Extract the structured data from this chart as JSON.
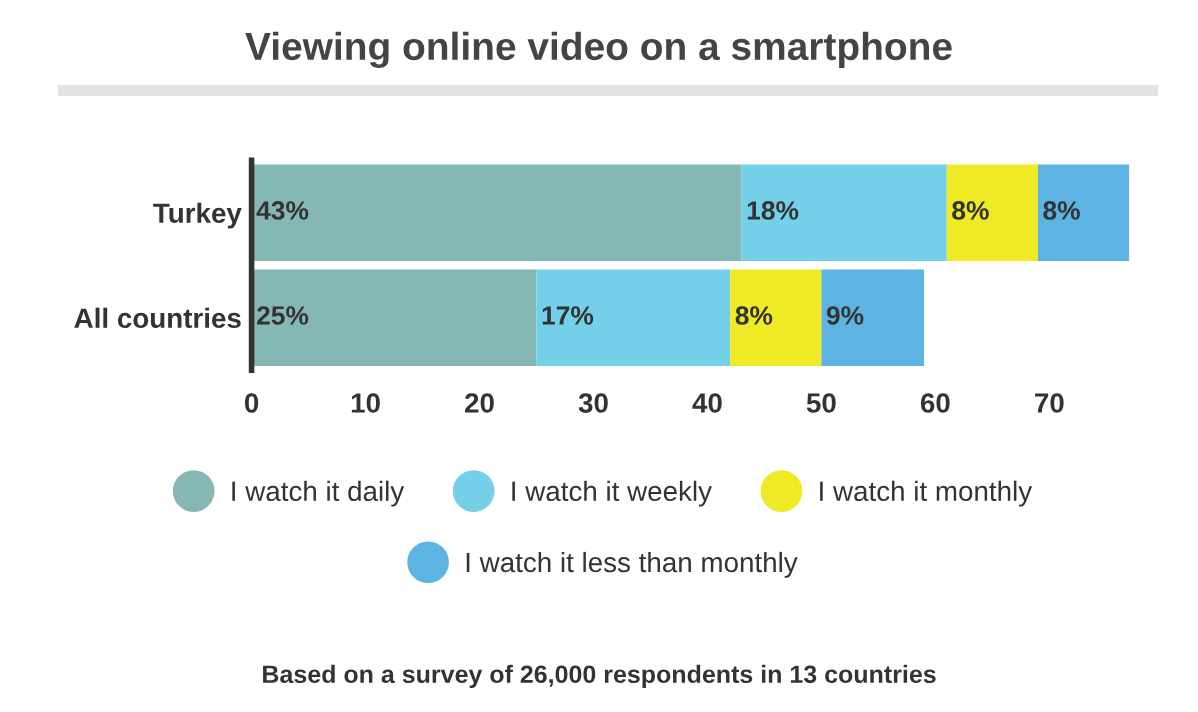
{
  "chart_data": {
    "type": "bar",
    "title": "Viewing online video on a smartphone",
    "orientation": "horizontal",
    "stacked": true,
    "categories": [
      "Turkey",
      "All countries"
    ],
    "series": [
      {
        "name": "I watch it daily",
        "color": "#85b8b5",
        "values": [
          43,
          25
        ],
        "value_labels": [
          "43%",
          "25%"
        ]
      },
      {
        "name": "I watch it weekly",
        "color": "#74d0e8",
        "values": [
          18,
          17
        ],
        "value_labels": [
          "18%",
          "17%"
        ]
      },
      {
        "name": "I watch it monthly",
        "color": "#f0e926",
        "values": [
          8,
          8
        ],
        "value_labels": [
          "8%",
          "8%"
        ]
      },
      {
        "name": "I watch it less than monthly",
        "color": "#5db4e3",
        "values": [
          8,
          9
        ],
        "value_labels": [
          "8%",
          "9%"
        ]
      }
    ],
    "xlim": [
      0,
      78
    ],
    "xticks": [
      0,
      10,
      20,
      30,
      40,
      50,
      60,
      70
    ],
    "grid": false,
    "legend": "bottom",
    "marker": "circle",
    "annotations": [
      "Based on a survey of 26,000 respondents in 13 countries"
    ]
  }
}
